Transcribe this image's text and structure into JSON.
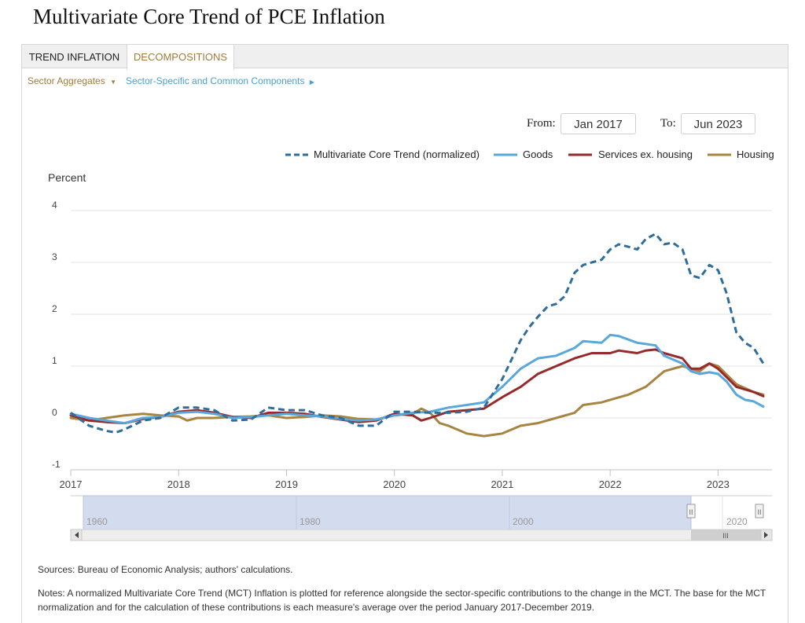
{
  "page_title": "Multivariate Core Trend of PCE Inflation",
  "tabs": [
    "TREND INFLATION",
    "DECOMPOSITIONS"
  ],
  "subnav": {
    "sector_aggregates": "Sector Aggregates",
    "sector_specific": "Sector-Specific and Common Components"
  },
  "date_range": {
    "from_label": "From:",
    "from_value": "Jan 2017",
    "to_label": "To:",
    "to_value": "Jun 2023"
  },
  "navigator": {
    "labels": [
      "1960",
      "1980",
      "2000",
      "2020"
    ],
    "handle_glyph": "II",
    "scroll_glyph": "III"
  },
  "sources": "Sources: Bureau of Economic Analysis; authors' calculations.",
  "notes_line1": "Notes: A normalized Multivariate Core Trend (MCT) Inflation is plotted for reference alongside the sector-specific contributions to the change in the MCT. The base for the MCT",
  "notes_line2": "normalization and for the calculation of these contributions is each measure's average over the period January 2017-December 2019.",
  "chart_data": {
    "type": "line",
    "title": "",
    "ylabel": "Percent",
    "xlabel": "",
    "ylim": [
      -1,
      4
    ],
    "xlim": [
      2017.0,
      2023.5
    ],
    "yticks": [
      -1,
      0,
      1,
      2,
      3,
      4
    ],
    "xticks": [
      2017,
      2018,
      2019,
      2020,
      2021,
      2022,
      2023
    ],
    "grid": true,
    "legend": "top-right",
    "series": [
      {
        "name": "Multivariate Core Trend (normalized)",
        "color": "#2f6d9c",
        "dash": true,
        "points": [
          [
            2017.0,
            0.1
          ],
          [
            2017.17,
            -0.15
          ],
          [
            2017.33,
            -0.25
          ],
          [
            2017.42,
            -0.28
          ],
          [
            2017.5,
            -0.22
          ],
          [
            2017.67,
            -0.05
          ],
          [
            2017.83,
            0.0
          ],
          [
            2018.0,
            0.2
          ],
          [
            2018.17,
            0.2
          ],
          [
            2018.33,
            0.15
          ],
          [
            2018.5,
            -0.05
          ],
          [
            2018.67,
            -0.03
          ],
          [
            2018.83,
            0.2
          ],
          [
            2019.0,
            0.15
          ],
          [
            2019.17,
            0.15
          ],
          [
            2019.33,
            0.05
          ],
          [
            2019.5,
            0.0
          ],
          [
            2019.67,
            -0.15
          ],
          [
            2019.83,
            -0.15
          ],
          [
            2020.0,
            0.12
          ],
          [
            2020.17,
            0.12
          ],
          [
            2020.33,
            0.1
          ],
          [
            2020.5,
            0.1
          ],
          [
            2020.67,
            0.12
          ],
          [
            2020.83,
            0.2
          ],
          [
            2021.0,
            0.75
          ],
          [
            2021.08,
            1.1
          ],
          [
            2021.17,
            1.5
          ],
          [
            2021.25,
            1.75
          ],
          [
            2021.33,
            1.95
          ],
          [
            2021.42,
            2.15
          ],
          [
            2021.5,
            2.2
          ],
          [
            2021.58,
            2.35
          ],
          [
            2021.67,
            2.8
          ],
          [
            2021.75,
            2.95
          ],
          [
            2021.83,
            3.0
          ],
          [
            2021.92,
            3.05
          ],
          [
            2022.0,
            3.25
          ],
          [
            2022.08,
            3.35
          ],
          [
            2022.17,
            3.3
          ],
          [
            2022.25,
            3.25
          ],
          [
            2022.33,
            3.45
          ],
          [
            2022.42,
            3.55
          ],
          [
            2022.5,
            3.35
          ],
          [
            2022.58,
            3.38
          ],
          [
            2022.67,
            3.25
          ],
          [
            2022.75,
            2.75
          ],
          [
            2022.83,
            2.7
          ],
          [
            2022.92,
            2.95
          ],
          [
            2023.0,
            2.85
          ],
          [
            2023.08,
            2.4
          ],
          [
            2023.17,
            1.65
          ],
          [
            2023.25,
            1.45
          ],
          [
            2023.33,
            1.35
          ],
          [
            2023.42,
            1.05
          ]
        ]
      },
      {
        "name": "Goods",
        "color": "#5aa7dc",
        "dash": false,
        "points": [
          [
            2017.0,
            0.08
          ],
          [
            2017.17,
            0.0
          ],
          [
            2017.33,
            -0.05
          ],
          [
            2017.5,
            -0.1
          ],
          [
            2017.67,
            0.0
          ],
          [
            2017.83,
            0.02
          ],
          [
            2018.0,
            0.1
          ],
          [
            2018.17,
            0.12
          ],
          [
            2018.33,
            0.08
          ],
          [
            2018.5,
            0.0
          ],
          [
            2018.67,
            0.02
          ],
          [
            2018.83,
            0.05
          ],
          [
            2019.0,
            0.08
          ],
          [
            2019.17,
            0.05
          ],
          [
            2019.33,
            0.03
          ],
          [
            2019.5,
            -0.02
          ],
          [
            2019.67,
            -0.05
          ],
          [
            2019.83,
            -0.03
          ],
          [
            2020.0,
            0.05
          ],
          [
            2020.17,
            0.1
          ],
          [
            2020.33,
            0.12
          ],
          [
            2020.5,
            0.2
          ],
          [
            2020.67,
            0.25
          ],
          [
            2020.83,
            0.3
          ],
          [
            2021.0,
            0.6
          ],
          [
            2021.17,
            0.95
          ],
          [
            2021.33,
            1.15
          ],
          [
            2021.5,
            1.2
          ],
          [
            2021.67,
            1.35
          ],
          [
            2021.75,
            1.48
          ],
          [
            2021.92,
            1.45
          ],
          [
            2022.0,
            1.6
          ],
          [
            2022.08,
            1.58
          ],
          [
            2022.25,
            1.45
          ],
          [
            2022.42,
            1.4
          ],
          [
            2022.5,
            1.2
          ],
          [
            2022.67,
            1.05
          ],
          [
            2022.75,
            0.9
          ],
          [
            2022.83,
            0.85
          ],
          [
            2022.92,
            0.88
          ],
          [
            2023.0,
            0.85
          ],
          [
            2023.08,
            0.7
          ],
          [
            2023.17,
            0.45
          ],
          [
            2023.25,
            0.35
          ],
          [
            2023.33,
            0.32
          ],
          [
            2023.42,
            0.22
          ]
        ]
      },
      {
        "name": "Services ex. housing",
        "color": "#962a2a",
        "dash": false,
        "points": [
          [
            2017.0,
            0.05
          ],
          [
            2017.17,
            -0.05
          ],
          [
            2017.33,
            -0.08
          ],
          [
            2017.5,
            -0.1
          ],
          [
            2017.67,
            -0.02
          ],
          [
            2017.83,
            0.02
          ],
          [
            2018.0,
            0.12
          ],
          [
            2018.17,
            0.15
          ],
          [
            2018.33,
            0.1
          ],
          [
            2018.5,
            0.02
          ],
          [
            2018.67,
            0.0
          ],
          [
            2018.83,
            0.1
          ],
          [
            2019.0,
            0.1
          ],
          [
            2019.17,
            0.08
          ],
          [
            2019.33,
            0.02
          ],
          [
            2019.5,
            -0.03
          ],
          [
            2019.67,
            -0.08
          ],
          [
            2019.83,
            -0.05
          ],
          [
            2020.0,
            0.08
          ],
          [
            2020.17,
            0.05
          ],
          [
            2020.25,
            -0.05
          ],
          [
            2020.33,
            0.0
          ],
          [
            2020.5,
            0.12
          ],
          [
            2020.67,
            0.15
          ],
          [
            2020.83,
            0.18
          ],
          [
            2021.0,
            0.4
          ],
          [
            2021.17,
            0.6
          ],
          [
            2021.33,
            0.85
          ],
          [
            2021.5,
            1.0
          ],
          [
            2021.67,
            1.15
          ],
          [
            2021.83,
            1.25
          ],
          [
            2022.0,
            1.25
          ],
          [
            2022.08,
            1.3
          ],
          [
            2022.25,
            1.25
          ],
          [
            2022.33,
            1.3
          ],
          [
            2022.42,
            1.32
          ],
          [
            2022.5,
            1.25
          ],
          [
            2022.67,
            1.15
          ],
          [
            2022.75,
            0.95
          ],
          [
            2022.83,
            0.95
          ],
          [
            2022.92,
            1.05
          ],
          [
            2023.0,
            0.95
          ],
          [
            2023.17,
            0.6
          ],
          [
            2023.33,
            0.5
          ],
          [
            2023.42,
            0.42
          ]
        ]
      },
      {
        "name": "Housing",
        "color": "#a88441",
        "dash": false,
        "points": [
          [
            2017.0,
            0.0
          ],
          [
            2017.17,
            -0.05
          ],
          [
            2017.33,
            0.0
          ],
          [
            2017.5,
            0.05
          ],
          [
            2017.67,
            0.08
          ],
          [
            2017.83,
            0.05
          ],
          [
            2018.0,
            0.03
          ],
          [
            2018.08,
            -0.05
          ],
          [
            2018.17,
            0.0
          ],
          [
            2018.33,
            0.0
          ],
          [
            2018.5,
            0.02
          ],
          [
            2018.67,
            0.03
          ],
          [
            2018.83,
            0.05
          ],
          [
            2019.0,
            0.0
          ],
          [
            2019.17,
            0.02
          ],
          [
            2019.33,
            0.05
          ],
          [
            2019.5,
            0.03
          ],
          [
            2019.67,
            -0.02
          ],
          [
            2019.83,
            -0.03
          ],
          [
            2020.0,
            0.05
          ],
          [
            2020.17,
            0.08
          ],
          [
            2020.25,
            0.18
          ],
          [
            2020.33,
            0.1
          ],
          [
            2020.42,
            -0.1
          ],
          [
            2020.5,
            -0.15
          ],
          [
            2020.67,
            -0.3
          ],
          [
            2020.83,
            -0.35
          ],
          [
            2021.0,
            -0.3
          ],
          [
            2021.17,
            -0.15
          ],
          [
            2021.33,
            -0.1
          ],
          [
            2021.5,
            0.0
          ],
          [
            2021.67,
            0.1
          ],
          [
            2021.75,
            0.25
          ],
          [
            2021.92,
            0.3
          ],
          [
            2022.0,
            0.35
          ],
          [
            2022.17,
            0.45
          ],
          [
            2022.33,
            0.6
          ],
          [
            2022.5,
            0.9
          ],
          [
            2022.67,
            1.0
          ],
          [
            2022.75,
            0.95
          ],
          [
            2022.83,
            0.9
          ],
          [
            2022.92,
            1.05
          ],
          [
            2023.0,
            1.0
          ],
          [
            2023.17,
            0.65
          ],
          [
            2023.33,
            0.5
          ],
          [
            2023.42,
            0.45
          ]
        ]
      }
    ]
  }
}
